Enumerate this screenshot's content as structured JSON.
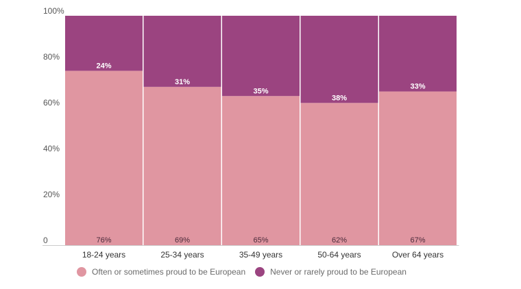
{
  "chart_data": {
    "type": "bar",
    "stacked": true,
    "title": "",
    "xlabel": "",
    "ylabel": "",
    "ylim": [
      0,
      100
    ],
    "y_ticks": [
      "0",
      "20%",
      "40%",
      "60%",
      "80%",
      "100%"
    ],
    "y_tick_values": [
      0,
      20,
      40,
      60,
      80,
      100
    ],
    "grid": false,
    "categories": [
      "18-24 years",
      "25-34 years",
      "35-49 years",
      "50-64 years",
      "Over 64 years"
    ],
    "series": [
      {
        "name": "Often or sometimes proud to be European",
        "color": "#e096a1",
        "values": [
          76,
          69,
          65,
          62,
          67
        ],
        "labels": [
          "76%",
          "69%",
          "65%",
          "62%",
          "67%"
        ]
      },
      {
        "name": "Never or rarely proud to be European",
        "color": "#9b4480",
        "values": [
          24,
          31,
          35,
          38,
          33
        ],
        "labels": [
          "24%",
          "31%",
          "35%",
          "38%",
          "33%"
        ]
      }
    ],
    "legend_position": "bottom"
  }
}
